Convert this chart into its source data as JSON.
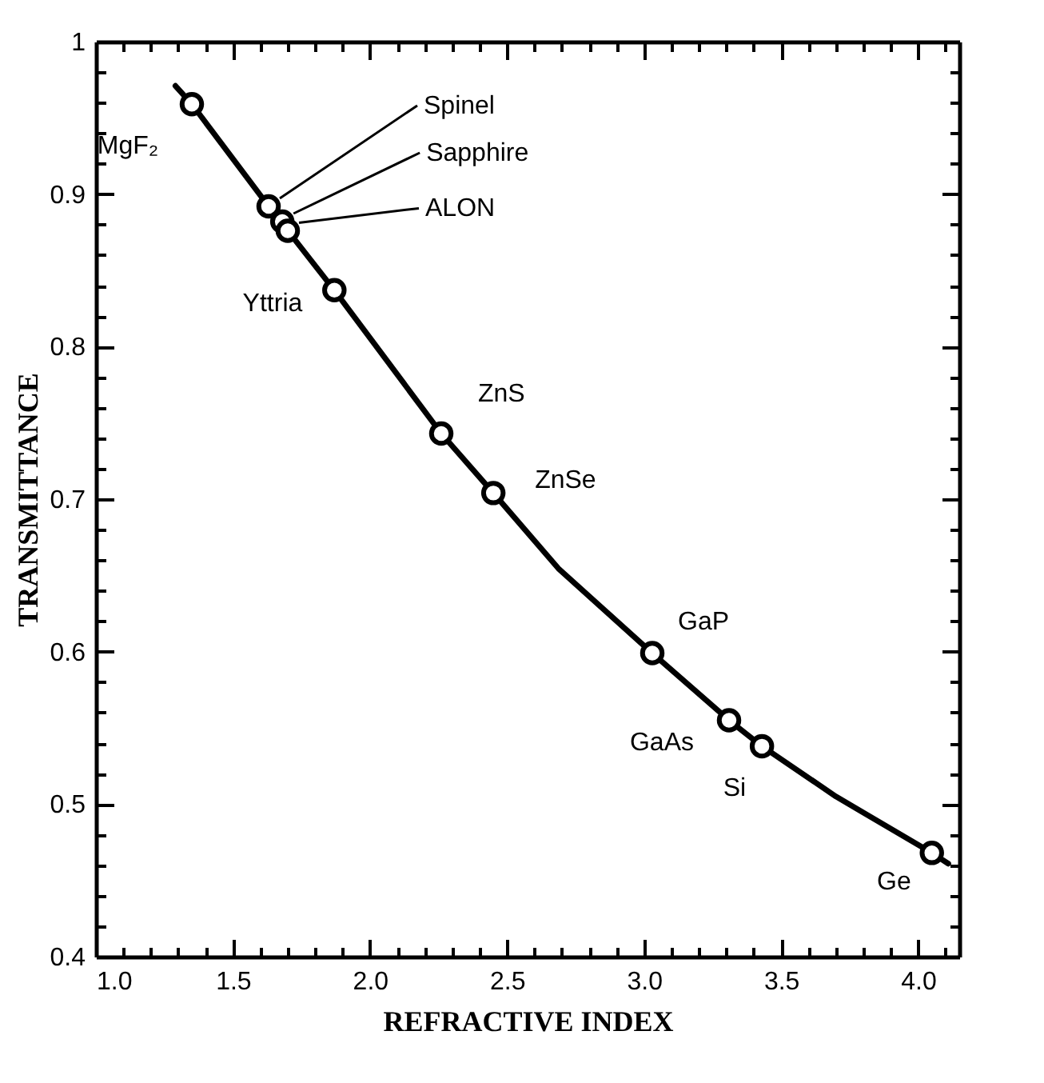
{
  "chart_data": {
    "type": "scatter",
    "xlabel": "REFRACTIVE INDEX",
    "ylabel": "TRANSMITTANCE",
    "xlim": [
      1.0,
      4.15
    ],
    "ylim": [
      0.4,
      1.0
    ],
    "xticks": [
      {
        "value": 1,
        "label": "1.0"
      },
      {
        "value": 1.1,
        "label": null
      },
      {
        "value": 1.2,
        "label": null
      },
      {
        "value": 1.3,
        "label": null
      },
      {
        "value": 1.4,
        "label": null
      },
      1.5,
      {
        "value": 1.6,
        "label": null
      },
      {
        "value": 1.7,
        "label": null
      },
      {
        "value": 1.8,
        "label": null
      },
      {
        "value": 1.9,
        "label": null
      },
      {
        "value": 2,
        "label": "2.0"
      },
      {
        "value": 2.1,
        "label": null
      },
      {
        "value": 2.2,
        "label": null
      },
      {
        "value": 2.3,
        "label": null
      },
      {
        "value": 2.4,
        "label": null
      },
      2.5,
      {
        "value": 2.6,
        "label": null
      },
      {
        "value": 2.7,
        "label": null
      },
      {
        "value": 2.8,
        "label": null
      },
      {
        "value": 2.9,
        "label": null
      },
      {
        "value": 3,
        "label": "3.0"
      },
      {
        "value": 3.1,
        "label": null
      },
      {
        "value": 3.2,
        "label": null
      },
      {
        "value": 3.3,
        "label": null
      },
      {
        "value": 3.4,
        "label": null
      },
      3.5,
      {
        "value": 3.6,
        "label": null
      },
      {
        "value": 3.7,
        "label": null
      },
      {
        "value": 3.8,
        "label": null
      },
      {
        "value": 3.9,
        "label": null
      },
      {
        "value": 4,
        "label": "4.0"
      },
      {
        "value": 4.1,
        "label": null
      }
    ],
    "yticks": [
      0.4,
      {
        "value": 0.42,
        "label": null
      },
      {
        "value": 0.44,
        "label": null
      },
      {
        "value": 0.46,
        "label": null
      },
      {
        "value": 0.48,
        "label": null
      },
      0.5,
      {
        "value": 0.52,
        "label": null
      },
      {
        "value": 0.54,
        "label": null
      },
      {
        "value": 0.56,
        "label": null
      },
      {
        "value": 0.58,
        "label": null
      },
      0.6,
      {
        "value": 0.62,
        "label": null
      },
      {
        "value": 0.64,
        "label": null
      },
      {
        "value": 0.66,
        "label": null
      },
      {
        "value": 0.68,
        "label": null
      },
      0.7,
      {
        "value": 0.72,
        "label": null
      },
      {
        "value": 0.74,
        "label": null
      },
      {
        "value": 0.76,
        "label": null
      },
      {
        "value": 0.78,
        "label": null
      },
      0.8,
      {
        "value": 0.82,
        "label": null
      },
      {
        "value": 0.84,
        "label": null
      },
      {
        "value": 0.86,
        "label": null
      },
      {
        "value": 0.88,
        "label": null
      },
      0.9,
      {
        "value": 0.92,
        "label": null
      },
      {
        "value": 0.94,
        "label": null
      },
      {
        "value": 0.96,
        "label": null
      },
      {
        "value": 0.98,
        "label": null
      },
      1
    ],
    "grid": false,
    "series": [
      {
        "type": "line",
        "color": "#000000",
        "marker": "none",
        "line_style": "solid",
        "x": [
          1.29,
          1.35,
          1.63,
          1.7,
          1.87,
          2.26,
          2.45,
          2.69,
          3.03,
          3.31,
          3.43,
          3.7,
          4.05,
          4.11
        ],
        "values": [
          0.971,
          0.959,
          0.892,
          0.876,
          0.837,
          0.743,
          0.704,
          0.654,
          0.599,
          0.555,
          0.538,
          0.505,
          0.468,
          0.461
        ]
      },
      {
        "type": "scatter",
        "color": "#000000",
        "marker": "circle",
        "x": [
          1.35,
          1.63,
          1.68,
          1.7,
          1.87,
          2.26,
          2.45,
          3.03,
          3.31,
          3.43,
          4.05
        ],
        "values": [
          0.959,
          0.892,
          0.882,
          0.876,
          0.837,
          0.743,
          0.704,
          0.599,
          0.555,
          0.538,
          0.468
        ]
      }
    ],
    "annotations": [
      {
        "text": "MgF₂",
        "x": 1.35,
        "y": 0.959
      },
      {
        "text": "Spinel",
        "x": 1.63,
        "y": 0.892
      },
      {
        "text": "Sapphire",
        "x": 1.68,
        "y": 0.882
      },
      {
        "text": "ALON",
        "x": 1.7,
        "y": 0.876
      },
      {
        "text": "Yttria",
        "x": 1.87,
        "y": 0.837
      },
      {
        "text": "ZnS",
        "x": 2.26,
        "y": 0.743
      },
      {
        "text": "ZnSe",
        "x": 2.45,
        "y": 0.704
      },
      {
        "text": "GaP",
        "x": 3.03,
        "y": 0.599
      },
      {
        "text": "GaAs",
        "x": 3.31,
        "y": 0.555
      },
      {
        "text": "Si",
        "x": 3.43,
        "y": 0.538
      },
      {
        "text": "Ge",
        "x": 4.05,
        "y": 0.468
      }
    ]
  }
}
